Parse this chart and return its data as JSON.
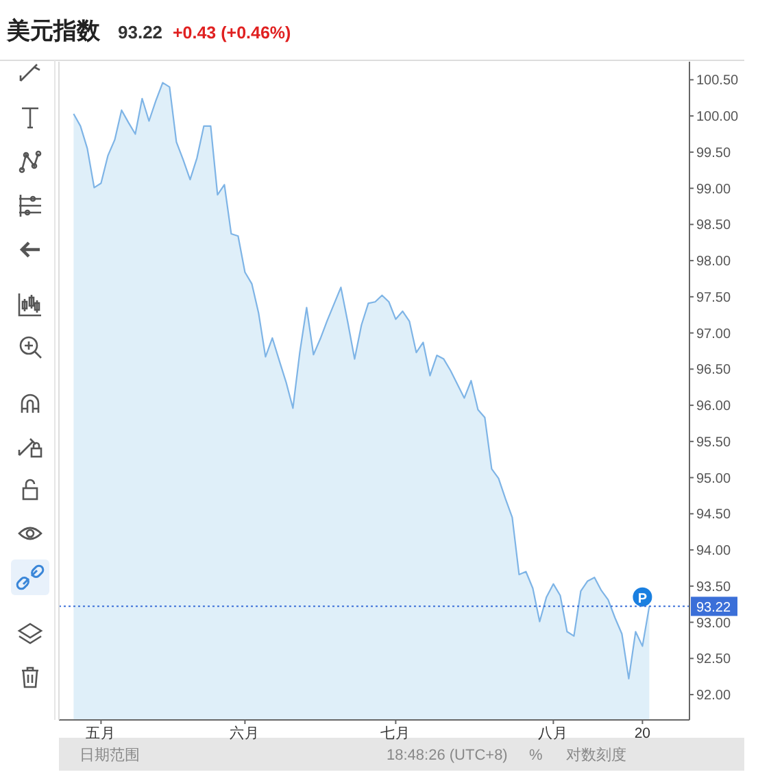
{
  "chart_data": {
    "type": "area",
    "title": "美元指数",
    "subtitle": "93.22",
    "categories": [
      null,
      null,
      null,
      null,
      "五月",
      null,
      null,
      null,
      null,
      null,
      null,
      null,
      null,
      null,
      null,
      null,
      null,
      null,
      null,
      null,
      null,
      null,
      null,
      null,
      null,
      "六月",
      null,
      null,
      null,
      null,
      null,
      null,
      null,
      null,
      null,
      null,
      null,
      null,
      null,
      null,
      null,
      null,
      null,
      null,
      null,
      null,
      null,
      "七月",
      null,
      null,
      null,
      null,
      null,
      null,
      null,
      null,
      null,
      null,
      null,
      null,
      null,
      null,
      null,
      null,
      null,
      null,
      null,
      null,
      null,
      null,
      "八月",
      null,
      null,
      null,
      null,
      null,
      null,
      null,
      null,
      null,
      null,
      null,
      null,
      "20",
      null
    ],
    "series": [
      {
        "color": "#7eb4e6",
        "values": [
          100.03,
          99.86,
          99.55,
          99.01,
          99.07,
          99.45,
          99.67,
          100.08,
          99.91,
          99.75,
          100.24,
          99.93,
          100.21,
          100.46,
          100.4,
          99.64,
          99.39,
          99.12,
          99.42,
          99.86,
          99.86,
          98.91,
          99.05,
          98.37,
          98.34,
          97.84,
          97.68,
          97.27,
          96.67,
          96.93,
          96.62,
          96.32,
          95.96,
          96.73,
          97.35,
          96.7,
          96.92,
          97.17,
          97.4,
          97.63,
          97.15,
          96.64,
          97.11,
          97.41,
          97.43,
          97.52,
          97.43,
          97.19,
          97.3,
          97.16,
          96.73,
          96.87,
          96.41,
          96.69,
          96.64,
          96.48,
          96.29,
          96.1,
          96.34,
          95.94,
          95.83,
          95.12,
          94.99,
          94.71,
          94.45,
          93.66,
          93.7,
          93.47,
          93.01,
          93.35,
          93.53,
          93.37,
          92.87,
          92.81,
          93.43,
          93.57,
          93.62,
          93.44,
          93.31,
          93.06,
          92.84,
          92.22,
          92.87,
          92.67,
          93.22
        ]
      }
    ],
    "ylim": [
      91.65,
      100.75
    ],
    "yticks": [
      {
        "value": 92,
        "label": "92.00"
      },
      {
        "value": 92.5,
        "label": "92.50"
      },
      {
        "value": 93,
        "label": "93.00"
      },
      {
        "value": 93.5,
        "label": "93.50"
      },
      {
        "value": 94,
        "label": "94.00"
      },
      {
        "value": 94.5,
        "label": "94.50"
      },
      {
        "value": 95,
        "label": "95.00"
      },
      {
        "value": 95.5,
        "label": "95.50"
      },
      {
        "value": 96,
        "label": "96.00"
      },
      {
        "value": 96.5,
        "label": "96.50"
      },
      {
        "value": 97,
        "label": "97.00"
      },
      {
        "value": 97.5,
        "label": "97.50"
      },
      {
        "value": 98,
        "label": "98.00"
      },
      {
        "value": 98.5,
        "label": "98.50"
      },
      {
        "value": 99,
        "label": "99.00"
      },
      {
        "value": 99.5,
        "label": "99.50"
      },
      {
        "value": 100,
        "label": "100.00"
      },
      {
        "value": 100.5,
        "label": "100.50"
      }
    ],
    "ref_lines": [
      {
        "axis": "y",
        "value": 93.22,
        "label": "93.22",
        "color": "#3b6fd8",
        "line_style": "dotted"
      }
    ],
    "annotations": [
      "+0.43 (+0.46%)",
      "日期范围",
      "18:48:26 (UTC+8)",
      "%",
      "对数刻度",
      {
        "text": "P",
        "x": "20",
        "y": 93.35
      }
    ],
    "grid": false
  }
}
